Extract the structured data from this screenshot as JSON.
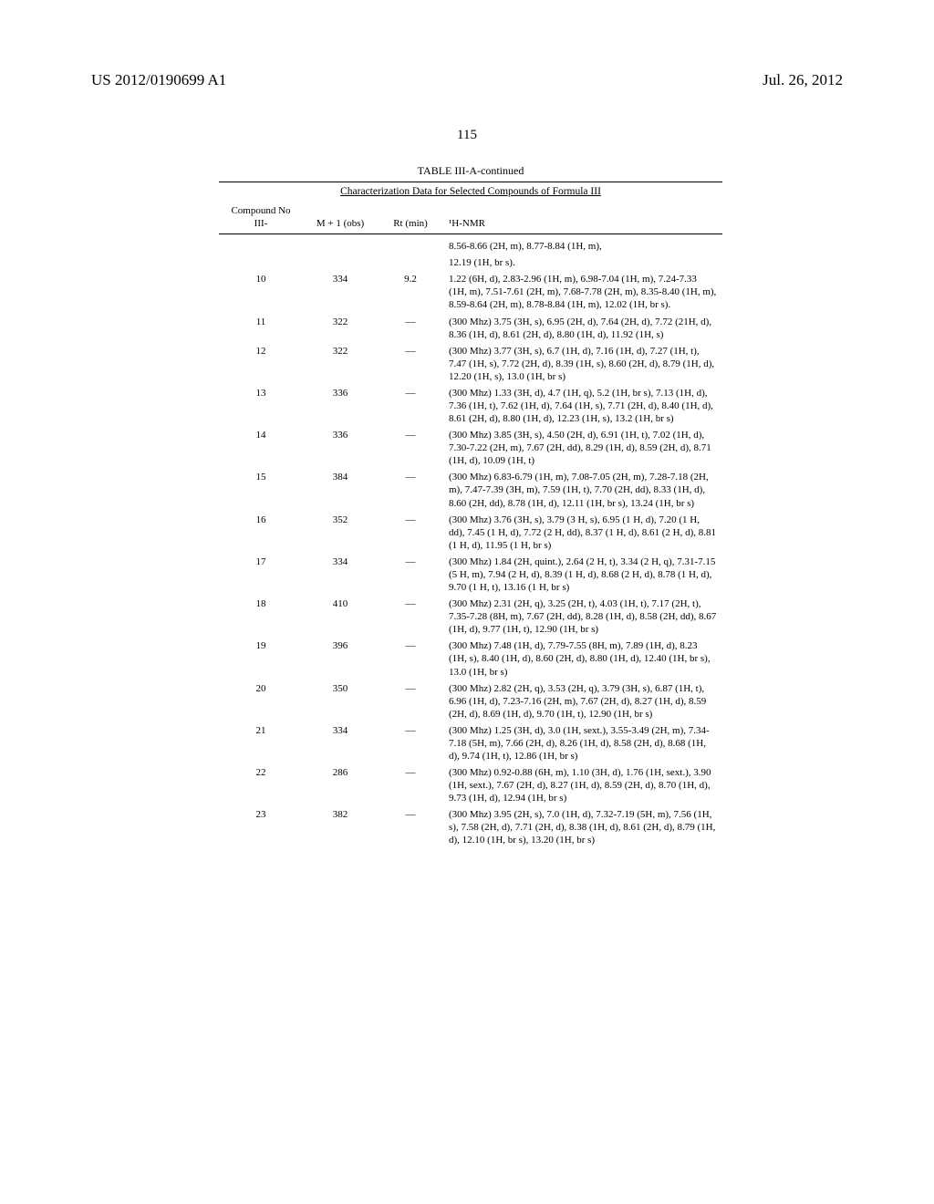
{
  "header": {
    "left": "US 2012/0190699 A1",
    "right": "Jul. 26, 2012"
  },
  "page_number": "115",
  "table": {
    "title": "TABLE III-A-continued",
    "subtitle": "Characterization Data for Selected Compounds of Formula III",
    "columns": {
      "c1a": "Compound No",
      "c1b": "III-",
      "c2": "M + 1 (obs)",
      "c3": "Rt (min)",
      "c4": "¹H-NMR"
    },
    "pre_rows": [
      "8.56-8.66 (2H, m), 8.77-8.84 (1H, m),",
      "12.19 (1H, br s)."
    ],
    "rows": [
      {
        "no": "10",
        "m": "334",
        "rt": "9.2",
        "nmr": "1.22 (6H, d), 2.83-2.96 (1H, m), 6.98-7.04 (1H, m), 7.24-7.33 (1H, m), 7.51-7.61 (2H, m), 7.68-7.78 (2H, m), 8.35-8.40 (1H, m), 8.59-8.64 (2H, m), 8.78-8.84 (1H, m), 12.02 (1H, br s)."
      },
      {
        "no": "11",
        "m": "322",
        "rt": "—",
        "nmr": "(300 Mhz) 3.75 (3H, s), 6.95 (2H, d), 7.64 (2H, d), 7.72 (21H, d), 8.36 (1H, d), 8.61 (2H, d), 8.80 (1H, d), 11.92 (1H, s)"
      },
      {
        "no": "12",
        "m": "322",
        "rt": "—",
        "nmr": "(300 Mhz) 3.77 (3H, s), 6.7 (1H, d), 7.16 (1H, d), 7.27 (1H, t), 7.47 (1H, s), 7.72 (2H, d), 8.39 (1H, s), 8.60 (2H, d), 8.79 (1H, d), 12.20 (1H, s), 13.0 (1H, br s)"
      },
      {
        "no": "13",
        "m": "336",
        "rt": "—",
        "nmr": "(300 Mhz) 1.33 (3H, d), 4.7 (1H, q), 5.2 (1H, br s), 7.13 (1H, d), 7.36 (1H, t), 7.62 (1H, d), 7.64 (1H, s), 7.71 (2H, d), 8.40 (1H, d), 8.61 (2H, d), 8.80 (1H, d), 12.23 (1H, s), 13.2 (1H, br s)"
      },
      {
        "no": "14",
        "m": "336",
        "rt": "—",
        "nmr": "(300 Mhz) 3.85 (3H, s), 4.50 (2H, d), 6.91 (1H, t), 7.02 (1H, d), 7.30-7.22 (2H, m), 7.67 (2H, dd), 8.29 (1H, d), 8.59 (2H, d), 8.71 (1H, d), 10.09 (1H, t)"
      },
      {
        "no": "15",
        "m": "384",
        "rt": "—",
        "nmr": "(300 Mhz) 6.83-6.79 (1H, m), 7.08-7.05 (2H, m), 7.28-7.18 (2H, m), 7.47-7.39 (3H, m), 7.59 (1H, t), 7.70 (2H, dd), 8.33 (1H, d), 8.60 (2H, dd), 8.78 (1H, d), 12.11 (1H, br s), 13.24 (1H, br s)"
      },
      {
        "no": "16",
        "m": "352",
        "rt": "—",
        "nmr": "(300 Mhz) 3.76 (3H, s), 3.79 (3 H, s), 6.95 (1 H, d), 7.20 (1 H, dd), 7.45 (1 H, d), 7.72 (2 H, dd), 8.37 (1 H, d), 8.61 (2 H, d), 8.81 (1 H, d), 11.95 (1 H, br s)"
      },
      {
        "no": "17",
        "m": "334",
        "rt": "—",
        "nmr": "(300 Mhz) 1.84 (2H, quint.), 2.64 (2 H, t), 3.34 (2 H, q), 7.31-7.15 (5 H, m), 7.94 (2 H, d), 8.39 (1 H, d), 8.68 (2 H, d), 8.78 (1 H, d), 9.70 (1 H, t), 13.16 (1 H, br s)"
      },
      {
        "no": "18",
        "m": "410",
        "rt": "—",
        "nmr": "(300 Mhz) 2.31 (2H, q), 3.25 (2H, t), 4.03 (1H, t), 7.17 (2H, t), 7.35-7.28 (8H, m), 7.67 (2H, dd), 8.28 (1H, d), 8.58 (2H, dd), 8.67 (1H, d), 9.77 (1H, t), 12.90 (1H, br s)"
      },
      {
        "no": "19",
        "m": "396",
        "rt": "—",
        "nmr": "(300 Mhz) 7.48 (1H, d), 7.79-7.55 (8H, m), 7.89 (1H, d), 8.23 (1H, s), 8.40 (1H, d), 8.60 (2H, d), 8.80 (1H, d), 12.40 (1H, br s), 13.0 (1H, br s)"
      },
      {
        "no": "20",
        "m": "350",
        "rt": "—",
        "nmr": "(300 Mhz) 2.82 (2H, q), 3.53 (2H, q), 3.79 (3H, s), 6.87 (1H, t), 6.96 (1H, d), 7.23-7.16 (2H, m), 7.67 (2H, d), 8.27 (1H, d), 8.59 (2H, d), 8.69 (1H, d), 9.70 (1H, t), 12.90 (1H, br s)"
      },
      {
        "no": "21",
        "m": "334",
        "rt": "—",
        "nmr": "(300 Mhz) 1.25 (3H, d), 3.0 (1H, sext.), 3.55-3.49 (2H, m), 7.34-7.18 (5H, m), 7.66 (2H, d), 8.26 (1H, d), 8.58 (2H, d), 8.68 (1H, d), 9.74 (1H, t), 12.86 (1H, br s)"
      },
      {
        "no": "22",
        "m": "286",
        "rt": "—",
        "nmr": "(300 Mhz) 0.92-0.88 (6H, m), 1.10 (3H, d), 1.76 (1H, sext.), 3.90 (1H, sext.), 7.67 (2H, d), 8.27 (1H, d), 8.59 (2H, d), 8.70 (1H, d), 9.73 (1H, d), 12.94 (1H, br s)"
      },
      {
        "no": "23",
        "m": "382",
        "rt": "—",
        "nmr": "(300 Mhz) 3.95 (2H, s), 7.0 (1H, d), 7.32-7.19 (5H, m), 7.56 (1H, s), 7.58 (2H, d), 7.71 (2H, d), 8.38 (1H, d), 8.61 (2H, d), 8.79 (1H, d), 12.10 (1H, br s), 13.20 (1H, br s)"
      }
    ]
  }
}
